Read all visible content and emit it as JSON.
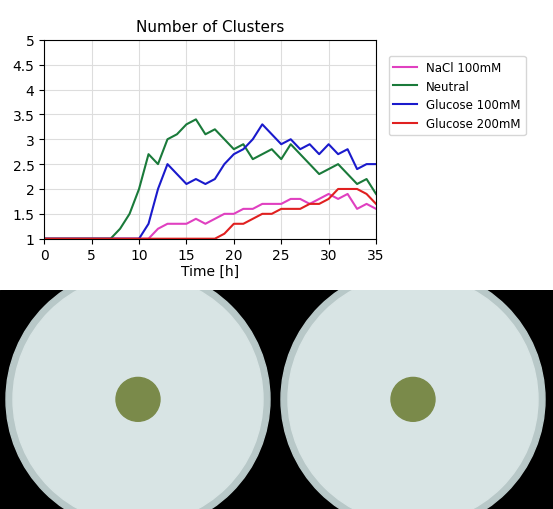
{
  "chart_data": {
    "type": "line",
    "title": "Number of Clusters",
    "x_label": "Time [h]",
    "x": [
      0,
      1,
      2,
      3,
      4,
      5,
      6,
      7,
      8,
      9,
      10,
      11,
      12,
      13,
      14,
      15,
      16,
      17,
      18,
      19,
      20,
      21,
      22,
      23,
      24,
      25,
      26,
      27,
      28,
      29,
      30,
      31,
      32,
      33,
      34,
      35
    ],
    "series": [
      {
        "name": "NaCl 100mM",
        "color": "#e040c0",
        "values": [
          1,
          1,
          1,
          1,
          1,
          1,
          1,
          1,
          1,
          1,
          1,
          1,
          1.2,
          1.3,
          1.3,
          1.3,
          1.4,
          1.3,
          1.4,
          1.5,
          1.5,
          1.6,
          1.6,
          1.7,
          1.7,
          1.7,
          1.8,
          1.8,
          1.7,
          1.8,
          1.9,
          1.8,
          1.9,
          1.6,
          1.7,
          1.6
        ]
      },
      {
        "name": "Neutral",
        "color": "#1a7a3a",
        "values": [
          1,
          1,
          1,
          1,
          1,
          1,
          1,
          1,
          1.2,
          1.5,
          2,
          2.7,
          2.5,
          3,
          3.1,
          3.3,
          3.4,
          3.1,
          3.2,
          3,
          2.8,
          2.9,
          2.6,
          2.7,
          2.8,
          2.6,
          2.9,
          2.7,
          2.5,
          2.3,
          2.4,
          2.5,
          2.3,
          2.1,
          2.2,
          1.9
        ]
      },
      {
        "name": "Glucose 100mM",
        "color": "#1a1acc",
        "values": [
          1,
          1,
          1,
          1,
          1,
          1,
          1,
          1,
          1,
          1,
          1,
          1.3,
          2,
          2.5,
          2.3,
          2.1,
          2.2,
          2.1,
          2.2,
          2.5,
          2.7,
          2.8,
          3,
          3.3,
          3.1,
          2.9,
          3,
          2.8,
          2.9,
          2.7,
          2.9,
          2.7,
          2.8,
          2.4,
          2.5,
          2.5
        ]
      },
      {
        "name": "Glucose 200mM",
        "color": "#e02020",
        "values": [
          1,
          1,
          1,
          1,
          1,
          1,
          1,
          1,
          1,
          1,
          1,
          1,
          1,
          1,
          1,
          1,
          1,
          1,
          1,
          1.1,
          1.3,
          1.3,
          1.4,
          1.5,
          1.5,
          1.6,
          1.6,
          1.6,
          1.7,
          1.7,
          1.8,
          2,
          2,
          2,
          1.9,
          1.7
        ]
      }
    ],
    "xlim": [
      0,
      35
    ],
    "xticks": [
      0,
      5,
      10,
      15,
      20,
      25,
      30,
      35
    ],
    "ylim": [
      1,
      5
    ],
    "yticks": [
      1,
      1.5,
      2,
      2.5,
      3,
      3.5,
      4,
      4.5,
      5
    ],
    "grid": true,
    "legend": "right"
  }
}
